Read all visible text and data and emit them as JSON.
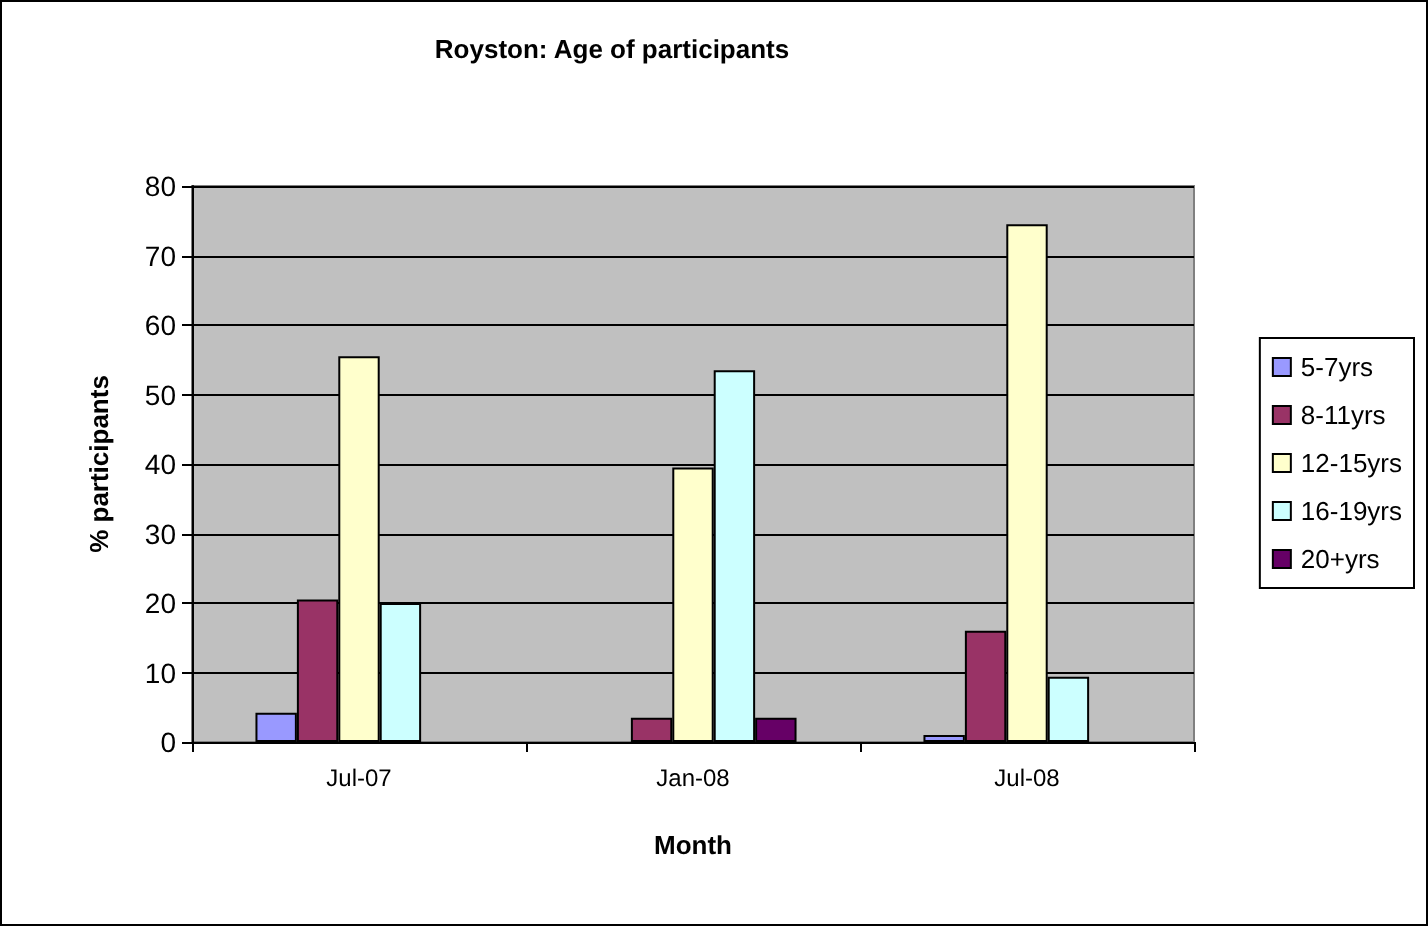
{
  "chart_data": {
    "type": "bar",
    "title": "Royston: Age of participants",
    "xlabel": "Month",
    "ylabel": "% participants",
    "categories": [
      "Jul-07",
      "Jan-08",
      "Jul-08"
    ],
    "series": [
      {
        "name": "5-7yrs",
        "color": "#9999ff",
        "values": [
          4.2,
          null,
          1
        ]
      },
      {
        "name": "8-11yrs",
        "color": "#993366",
        "values": [
          20.5,
          3.5,
          16
        ]
      },
      {
        "name": "12-15yrs",
        "color": "#ffffcc",
        "values": [
          55.5,
          39.5,
          74.5
        ]
      },
      {
        "name": "16-19yrs",
        "color": "#ccffff",
        "values": [
          20,
          53.5,
          9.4
        ]
      },
      {
        "name": "20+yrs",
        "color": "#660066",
        "values": [
          null,
          3.5,
          null
        ]
      }
    ],
    "ylim": [
      0,
      80
    ],
    "yticks": [
      0,
      10,
      20,
      30,
      40,
      50,
      60,
      70,
      80
    ],
    "grid": "y",
    "legend": "right"
  }
}
